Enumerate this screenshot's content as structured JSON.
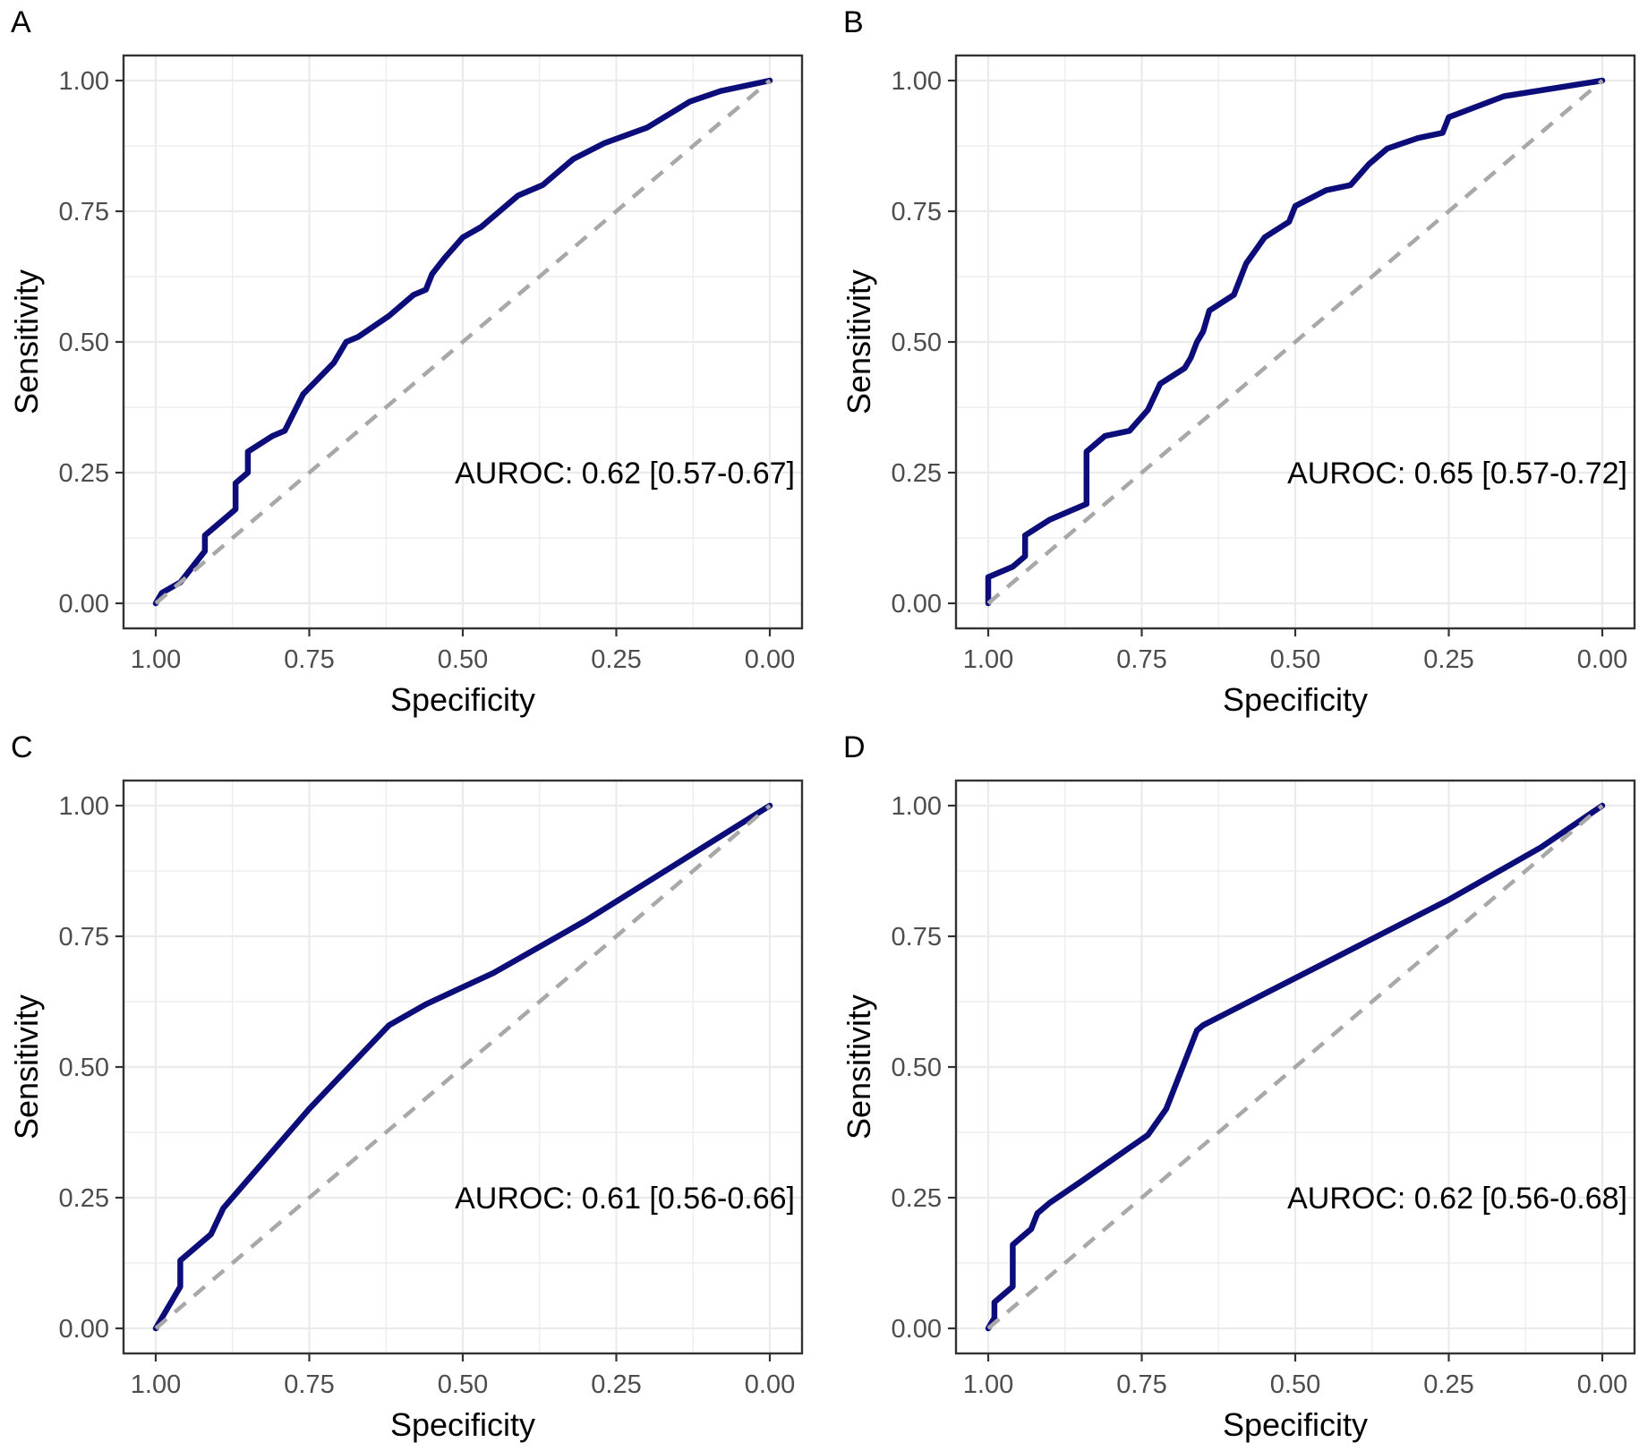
{
  "figure": {
    "colors": {
      "roc": "#0d0d7a",
      "diag": "#a8a8a8",
      "grid": "#ebebeb",
      "frame": "#333333",
      "tick": "#4d4d4d"
    }
  },
  "chart_data": [
    {
      "panel": "A",
      "type": "line",
      "xlabel": "Specificity",
      "ylabel": "Sensitivity",
      "xlim": [
        1.0,
        0.0
      ],
      "ylim": [
        0.0,
        1.0
      ],
      "x_ticks": [
        "1.00",
        "0.75",
        "0.50",
        "0.25",
        "0.00"
      ],
      "y_ticks": [
        "0.00",
        "0.25",
        "0.50",
        "0.75",
        "1.00"
      ],
      "annotation": "AUROC: 0.62 [0.57-0.67]",
      "series": [
        {
          "name": "ROC",
          "style": "solid",
          "specificity": [
            1.0,
            0.99,
            0.96,
            0.92,
            0.92,
            0.89,
            0.87,
            0.87,
            0.85,
            0.85,
            0.81,
            0.79,
            0.76,
            0.71,
            0.69,
            0.67,
            0.62,
            0.58,
            0.56,
            0.55,
            0.53,
            0.5,
            0.47,
            0.41,
            0.37,
            0.32,
            0.27,
            0.2,
            0.13,
            0.08,
            0.0
          ],
          "sensitivity": [
            0.0,
            0.02,
            0.04,
            0.1,
            0.13,
            0.16,
            0.18,
            0.23,
            0.25,
            0.29,
            0.32,
            0.33,
            0.4,
            0.46,
            0.5,
            0.51,
            0.55,
            0.59,
            0.6,
            0.63,
            0.66,
            0.7,
            0.72,
            0.78,
            0.8,
            0.85,
            0.88,
            0.91,
            0.96,
            0.98,
            1.0
          ]
        },
        {
          "name": "Reference",
          "style": "dashed",
          "specificity": [
            1.0,
            0.0
          ],
          "sensitivity": [
            0.0,
            1.0
          ]
        }
      ]
    },
    {
      "panel": "B",
      "type": "line",
      "xlabel": "Specificity",
      "ylabel": "Sensitivity",
      "xlim": [
        1.0,
        0.0
      ],
      "ylim": [
        0.0,
        1.0
      ],
      "x_ticks": [
        "1.00",
        "0.75",
        "0.50",
        "0.25",
        "0.00"
      ],
      "y_ticks": [
        "0.00",
        "0.25",
        "0.50",
        "0.75",
        "1.00"
      ],
      "annotation": "AUROC: 0.65 [0.57-0.72]",
      "series": [
        {
          "name": "ROC",
          "style": "solid",
          "specificity": [
            1.0,
            1.0,
            0.96,
            0.94,
            0.94,
            0.9,
            0.86,
            0.84,
            0.84,
            0.81,
            0.77,
            0.74,
            0.72,
            0.68,
            0.67,
            0.66,
            0.65,
            0.64,
            0.6,
            0.58,
            0.55,
            0.51,
            0.5,
            0.45,
            0.41,
            0.38,
            0.35,
            0.3,
            0.26,
            0.25,
            0.16,
            0.0
          ],
          "sensitivity": [
            0.0,
            0.05,
            0.07,
            0.09,
            0.13,
            0.16,
            0.18,
            0.19,
            0.29,
            0.32,
            0.33,
            0.37,
            0.42,
            0.45,
            0.47,
            0.5,
            0.52,
            0.56,
            0.59,
            0.65,
            0.7,
            0.73,
            0.76,
            0.79,
            0.8,
            0.84,
            0.87,
            0.89,
            0.9,
            0.93,
            0.97,
            1.0
          ]
        },
        {
          "name": "Reference",
          "style": "dashed",
          "specificity": [
            1.0,
            0.0
          ],
          "sensitivity": [
            0.0,
            1.0
          ]
        }
      ]
    },
    {
      "panel": "C",
      "type": "line",
      "xlabel": "Specificity",
      "ylabel": "Sensitivity",
      "xlim": [
        1.0,
        0.0
      ],
      "ylim": [
        0.0,
        1.0
      ],
      "x_ticks": [
        "1.00",
        "0.75",
        "0.50",
        "0.25",
        "0.00"
      ],
      "y_ticks": [
        "0.00",
        "0.25",
        "0.50",
        "0.75",
        "1.00"
      ],
      "annotation": "AUROC: 0.61 [0.56-0.66]",
      "series": [
        {
          "name": "ROC",
          "style": "solid",
          "specificity": [
            1.0,
            0.98,
            0.96,
            0.96,
            0.94,
            0.91,
            0.89,
            0.75,
            0.62,
            0.56,
            0.45,
            0.3,
            0.15,
            0.0
          ],
          "sensitivity": [
            0.0,
            0.04,
            0.08,
            0.13,
            0.15,
            0.18,
            0.23,
            0.42,
            0.58,
            0.62,
            0.68,
            0.78,
            0.89,
            1.0
          ]
        },
        {
          "name": "Reference",
          "style": "dashed",
          "specificity": [
            1.0,
            0.0
          ],
          "sensitivity": [
            0.0,
            1.0
          ]
        }
      ]
    },
    {
      "panel": "D",
      "type": "line",
      "xlabel": "Specificity",
      "ylabel": "Sensitivity",
      "xlim": [
        1.0,
        0.0
      ],
      "ylim": [
        0.0,
        1.0
      ],
      "x_ticks": [
        "1.00",
        "0.75",
        "0.50",
        "0.25",
        "0.00"
      ],
      "y_ticks": [
        "0.00",
        "0.25",
        "0.50",
        "0.75",
        "1.00"
      ],
      "annotation": "AUROC: 0.62 [0.56-0.68]",
      "series": [
        {
          "name": "ROC",
          "style": "solid",
          "specificity": [
            1.0,
            0.99,
            0.99,
            0.96,
            0.96,
            0.93,
            0.92,
            0.9,
            0.85,
            0.74,
            0.71,
            0.68,
            0.66,
            0.65,
            0.55,
            0.4,
            0.25,
            0.1,
            0.0
          ],
          "sensitivity": [
            0.0,
            0.02,
            0.05,
            0.08,
            0.16,
            0.19,
            0.22,
            0.24,
            0.28,
            0.37,
            0.42,
            0.51,
            0.57,
            0.58,
            0.64,
            0.73,
            0.82,
            0.92,
            1.0
          ]
        },
        {
          "name": "Reference",
          "style": "dashed",
          "specificity": [
            1.0,
            0.0
          ],
          "sensitivity": [
            0.0,
            1.0
          ]
        }
      ]
    }
  ]
}
